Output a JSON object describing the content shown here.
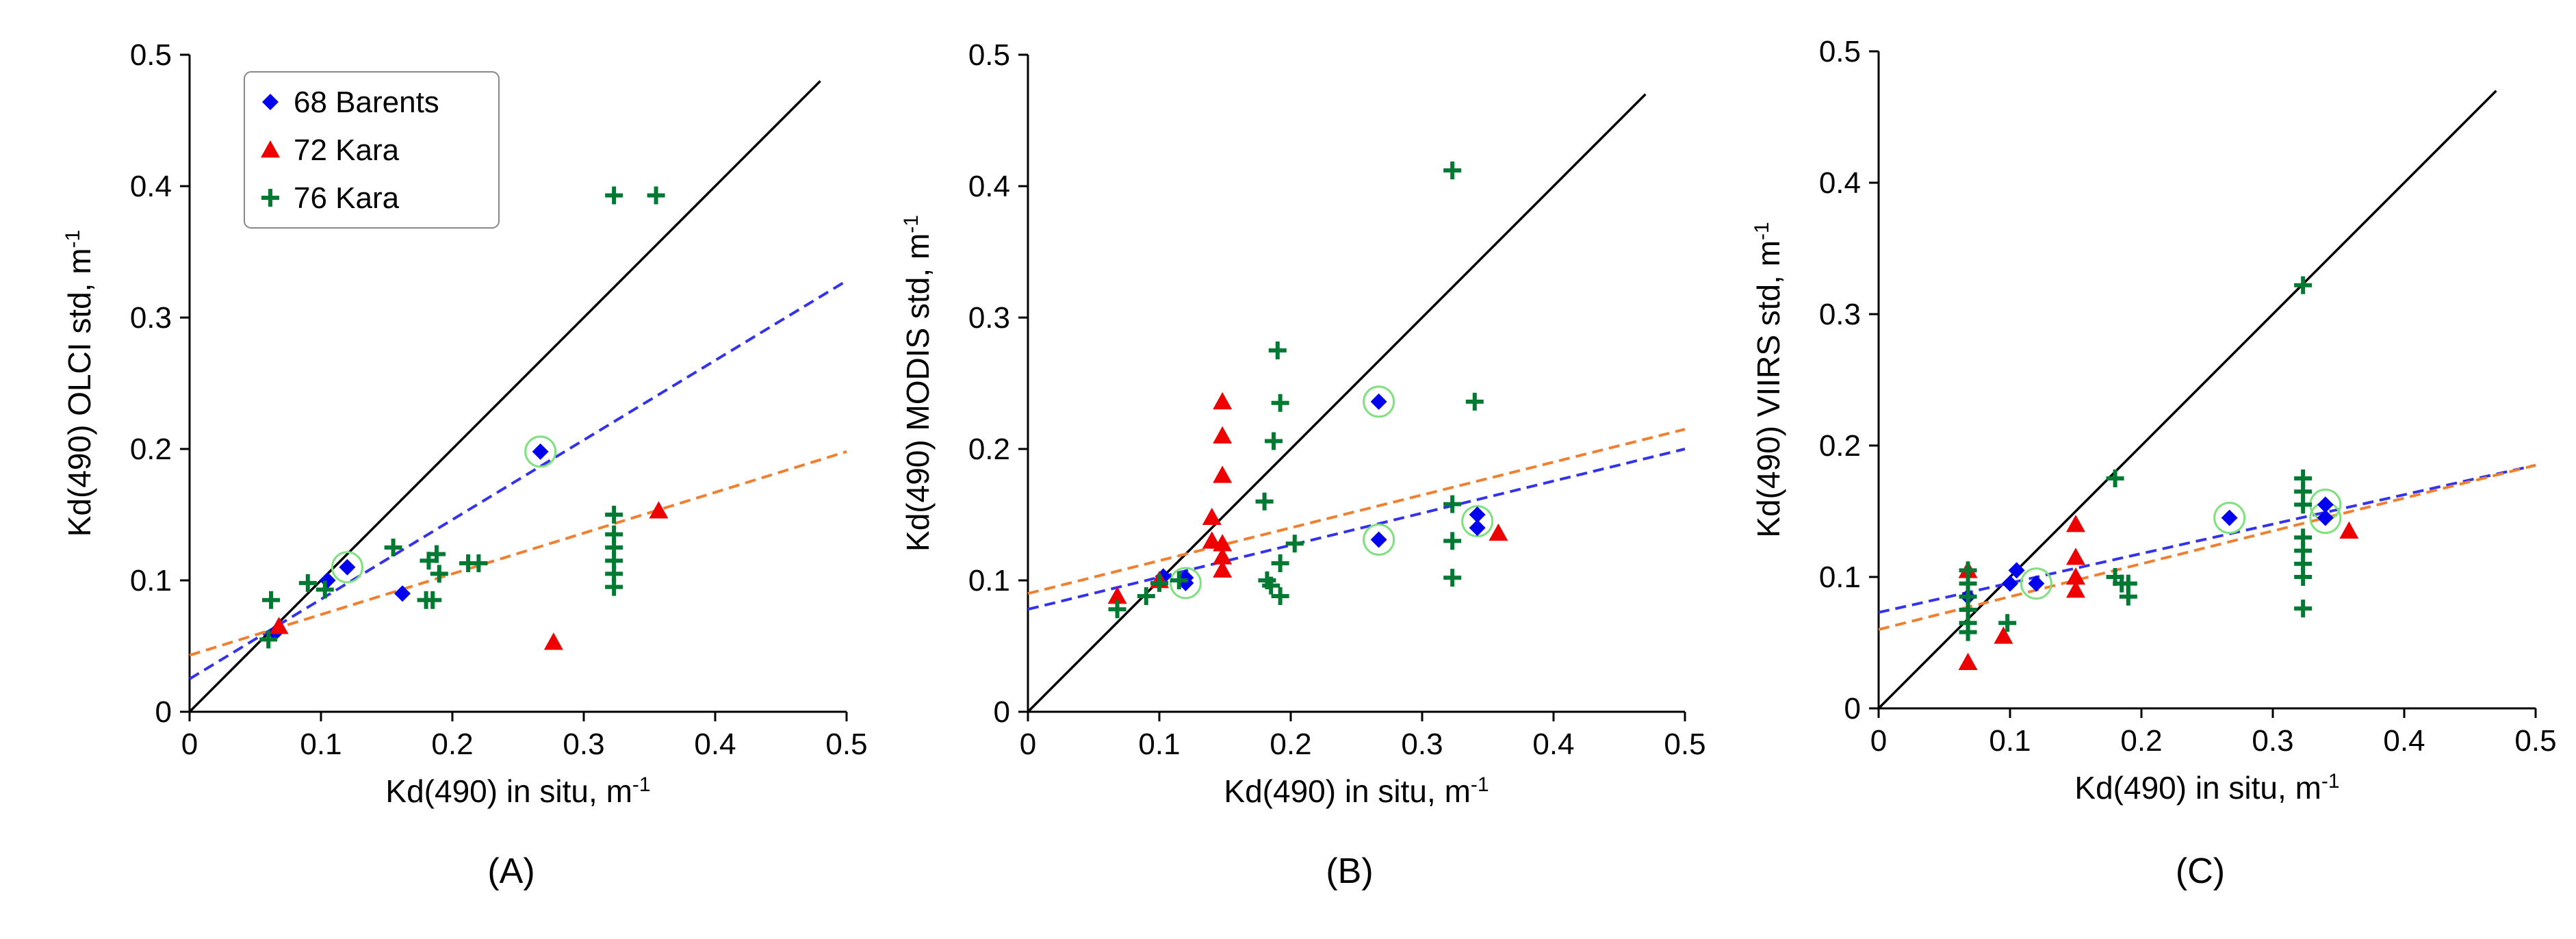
{
  "chart_data": [
    {
      "type": "scatter",
      "panel_label": "(A)",
      "xlabel": "Kd(490) in situ, m-1",
      "ylabel": "Kd(490) OLCI std, m-1",
      "xlim": [
        0,
        0.5
      ],
      "ylim": [
        0,
        0.5
      ],
      "x_ticks": [
        "0",
        "0.1",
        "0.2",
        "0.3",
        "0.4",
        "0.5"
      ],
      "y_ticks": [
        "0",
        "0.1",
        "0.2",
        "0.3",
        "0.4",
        "0.5"
      ],
      "legend": {
        "position": "top-left",
        "entries": [
          "68 Barents",
          "72 Kara",
          "76 Kara"
        ]
      },
      "series": [
        {
          "name": "68 Barents",
          "marker": "diamond",
          "color": "#0000ee",
          "points": [
            [
              0.065,
              0.06
            ],
            [
              0.105,
              0.1
            ],
            [
              0.12,
              0.11
            ],
            [
              0.162,
              0.09
            ],
            [
              0.267,
              0.198
            ]
          ]
        },
        {
          "name": "72 Kara",
          "marker": "triangle",
          "color": "#ee0000",
          "points": [
            [
              0.068,
              0.065
            ],
            [
              0.277,
              0.053
            ],
            [
              0.357,
              0.153
            ]
          ]
        },
        {
          "name": "76 Kara",
          "marker": "plus",
          "color": "#007a33",
          "points": [
            [
              0.06,
              0.055
            ],
            [
              0.062,
              0.085
            ],
            [
              0.09,
              0.098
            ],
            [
              0.103,
              0.093
            ],
            [
              0.155,
              0.125
            ],
            [
              0.18,
              0.085
            ],
            [
              0.185,
              0.085
            ],
            [
              0.182,
              0.115
            ],
            [
              0.188,
              0.12
            ],
            [
              0.19,
              0.105
            ],
            [
              0.212,
              0.113
            ],
            [
              0.22,
              0.113
            ],
            [
              0.323,
              0.095
            ],
            [
              0.323,
              0.105
            ],
            [
              0.323,
              0.115
            ],
            [
              0.323,
              0.125
            ],
            [
              0.323,
              0.135
            ],
            [
              0.323,
              0.15
            ],
            [
              0.323,
              0.393
            ],
            [
              0.355,
              0.393
            ]
          ]
        }
      ],
      "highlighted": [
        [
          0.12,
          0.11
        ],
        [
          0.267,
          0.198
        ]
      ],
      "lines": [
        {
          "name": "1:1",
          "style": "solid",
          "color": "#000000",
          "x": [
            0,
            0.48
          ],
          "y": [
            0,
            0.48
          ]
        },
        {
          "name": "Barents fit",
          "style": "dashed",
          "color": "#3333ee",
          "x": [
            0,
            0.5
          ],
          "y": [
            0.025,
            0.328
          ]
        },
        {
          "name": "Kara fit",
          "style": "dashed",
          "color": "#f07f30",
          "x": [
            0,
            0.5
          ],
          "y": [
            0.043,
            0.198
          ]
        }
      ]
    },
    {
      "type": "scatter",
      "panel_label": "(B)",
      "xlabel": "Kd(490) in situ, m-1",
      "ylabel": "Kd(490) MODIS std, m-1",
      "xlim": [
        0,
        0.5
      ],
      "ylim": [
        0,
        0.5
      ],
      "x_ticks": [
        "0",
        "0.1",
        "0.2",
        "0.3",
        "0.4",
        "0.5"
      ],
      "y_ticks": [
        "0",
        "0.1",
        "0.2",
        "0.3",
        "0.4",
        "0.5"
      ],
      "series": [
        {
          "name": "68 Barents",
          "marker": "diamond",
          "color": "#0000ee",
          "points": [
            [
              0.103,
              0.103
            ],
            [
              0.12,
              0.098
            ],
            [
              0.12,
              0.102
            ],
            [
              0.267,
              0.236
            ],
            [
              0.267,
              0.131
            ],
            [
              0.342,
              0.15
            ],
            [
              0.342,
              0.14
            ]
          ]
        },
        {
          "name": "72 Kara",
          "marker": "triangle",
          "color": "#ee0000",
          "points": [
            [
              0.068,
              0.088
            ],
            [
              0.1,
              0.1
            ],
            [
              0.14,
              0.148
            ],
            [
              0.14,
              0.13
            ],
            [
              0.148,
              0.236
            ],
            [
              0.148,
              0.21
            ],
            [
              0.148,
              0.18
            ],
            [
              0.148,
              0.128
            ],
            [
              0.148,
              0.118
            ],
            [
              0.148,
              0.108
            ],
            [
              0.358,
              0.136
            ]
          ]
        },
        {
          "name": "76 Kara",
          "marker": "plus",
          "color": "#007a33",
          "points": [
            [
              0.068,
              0.078
            ],
            [
              0.09,
              0.088
            ],
            [
              0.1,
              0.098
            ],
            [
              0.115,
              0.1
            ],
            [
              0.18,
              0.16
            ],
            [
              0.182,
              0.1
            ],
            [
              0.185,
              0.096
            ],
            [
              0.187,
              0.206
            ],
            [
              0.19,
              0.275
            ],
            [
              0.192,
              0.235
            ],
            [
              0.192,
              0.113
            ],
            [
              0.192,
              0.088
            ],
            [
              0.203,
              0.128
            ],
            [
              0.323,
              0.412
            ],
            [
              0.323,
              0.158
            ],
            [
              0.323,
              0.102
            ],
            [
              0.323,
              0.13
            ],
            [
              0.34,
              0.236
            ]
          ]
        }
      ],
      "highlighted": [
        [
          0.12,
          0.098
        ],
        [
          0.267,
          0.236
        ],
        [
          0.267,
          0.131
        ],
        [
          0.342,
          0.145
        ]
      ],
      "lines": [
        {
          "name": "1:1",
          "style": "solid",
          "color": "#000000",
          "x": [
            0,
            0.47
          ],
          "y": [
            0,
            0.47
          ]
        },
        {
          "name": "Barents fit",
          "style": "dashed",
          "color": "#3333ee",
          "x": [
            0,
            0.5
          ],
          "y": [
            0.078,
            0.2
          ]
        },
        {
          "name": "Kara fit",
          "style": "dashed",
          "color": "#f07f30",
          "x": [
            0,
            0.5
          ],
          "y": [
            0.09,
            0.215
          ]
        }
      ]
    },
    {
      "type": "scatter",
      "panel_label": "(C)",
      "xlabel": "Kd(490) in situ, m-1",
      "ylabel": "Kd(490) VIIRS std, m-1",
      "xlim": [
        0,
        0.5
      ],
      "ylim": [
        0,
        0.5
      ],
      "x_ticks": [
        "0",
        "0.1",
        "0.2",
        "0.3",
        "0.4",
        "0.5"
      ],
      "y_ticks": [
        "0",
        "0.1",
        "0.2",
        "0.3",
        "0.4",
        "0.5"
      ],
      "series": [
        {
          "name": "68 Barents",
          "marker": "diamond",
          "color": "#0000ee",
          "points": [
            [
              0.068,
              0.085
            ],
            [
              0.1,
              0.095
            ],
            [
              0.105,
              0.105
            ],
            [
              0.12,
              0.095
            ],
            [
              0.267,
              0.145
            ],
            [
              0.34,
              0.155
            ],
            [
              0.34,
              0.145
            ]
          ]
        },
        {
          "name": "72 Kara",
          "marker": "triangle",
          "color": "#ee0000",
          "points": [
            [
              0.068,
              0.035
            ],
            [
              0.068,
              0.105
            ],
            [
              0.095,
              0.055
            ],
            [
              0.15,
              0.14
            ],
            [
              0.15,
              0.115
            ],
            [
              0.15,
              0.1
            ],
            [
              0.15,
              0.09
            ],
            [
              0.358,
              0.135
            ]
          ]
        },
        {
          "name": "76 Kara",
          "marker": "plus",
          "color": "#007a33",
          "points": [
            [
              0.068,
              0.105
            ],
            [
              0.068,
              0.095
            ],
            [
              0.068,
              0.085
            ],
            [
              0.068,
              0.075
            ],
            [
              0.068,
              0.065
            ],
            [
              0.068,
              0.058
            ],
            [
              0.098,
              0.065
            ],
            [
              0.18,
              0.175
            ],
            [
              0.18,
              0.1
            ],
            [
              0.185,
              0.095
            ],
            [
              0.19,
              0.085
            ],
            [
              0.19,
              0.095
            ],
            [
              0.323,
              0.322
            ],
            [
              0.323,
              0.175
            ],
            [
              0.323,
              0.165
            ],
            [
              0.323,
              0.155
            ],
            [
              0.323,
              0.13
            ],
            [
              0.323,
              0.12
            ],
            [
              0.323,
              0.11
            ],
            [
              0.323,
              0.1
            ],
            [
              0.323,
              0.076
            ]
          ]
        }
      ],
      "highlighted": [
        [
          0.12,
          0.095
        ],
        [
          0.267,
          0.145
        ],
        [
          0.34,
          0.155
        ],
        [
          0.34,
          0.145
        ]
      ],
      "lines": [
        {
          "name": "1:1",
          "style": "solid",
          "color": "#000000",
          "x": [
            0,
            0.47
          ],
          "y": [
            0,
            0.47
          ]
        },
        {
          "name": "Barents fit",
          "style": "dashed",
          "color": "#3333ee",
          "x": [
            0,
            0.5
          ],
          "y": [
            0.073,
            0.185
          ]
        },
        {
          "name": "Kara fit",
          "style": "dashed",
          "color": "#f07f30",
          "x": [
            0,
            0.5
          ],
          "y": [
            0.06,
            0.185
          ]
        }
      ]
    }
  ]
}
